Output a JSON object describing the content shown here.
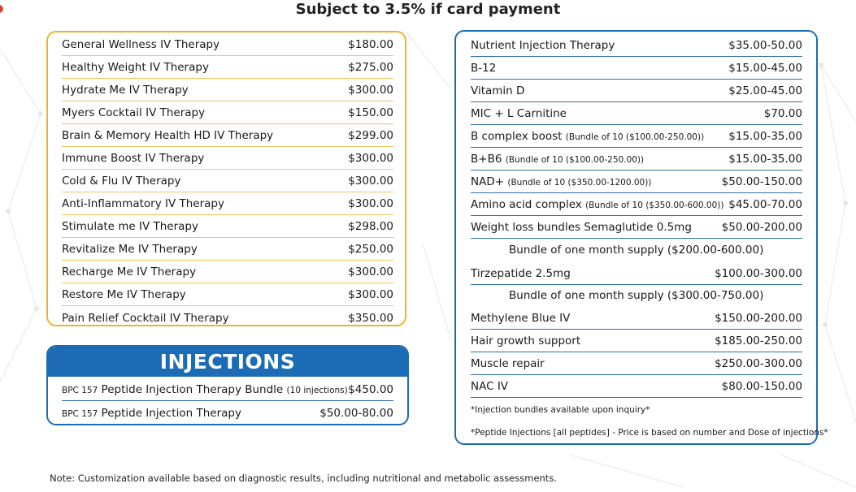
{
  "header": {
    "subject_line": "Subject to 3.5% if card payment"
  },
  "iv_therapies": [
    {
      "name": "General Wellness IV Therapy",
      "price": "$180.00"
    },
    {
      "name": "Healthy Weight IV Therapy",
      "price": "$275.00"
    },
    {
      "name": "Hydrate Me IV Therapy",
      "price": "$300.00"
    },
    {
      "name": "Myers Cocktail IV Therapy",
      "price": "$150.00"
    },
    {
      "name": "Brain & Memory Health HD IV Therapy",
      "price": "$299.00"
    },
    {
      "name": "Immune Boost IV Therapy",
      "price": "$300.00"
    },
    {
      "name": "Cold & Flu IV Therapy",
      "price": "$300.00"
    },
    {
      "name": "Anti-Inflammatory IV Therapy",
      "price": "$300.00"
    },
    {
      "name": "Stimulate me IV Therapy",
      "price": "$298.00"
    },
    {
      "name": "Revitalize Me IV Therapy",
      "price": "$250.00"
    },
    {
      "name": "Recharge Me IV Therapy",
      "price": "$300.00"
    },
    {
      "name": "Restore Me IV Therapy",
      "price": "$300.00"
    },
    {
      "name": "Pain Relief Cocktail IV Therapy",
      "price": "$350.00"
    }
  ],
  "injections": {
    "title": "INJECTIONS",
    "items": [
      {
        "prefix": "BPC 157",
        "name": "Peptide Injection Therapy Bundle",
        "note": "(10 injections)",
        "price": "$450.00"
      },
      {
        "prefix": "BPC 157",
        "name": "Peptide Injection Therapy",
        "note": "",
        "price": "$50.00-80.00"
      }
    ]
  },
  "nutrients": [
    {
      "name": "Nutrient Injection Therapy",
      "note": "",
      "price": "$35.00-50.00"
    },
    {
      "name": "B-12",
      "note": "",
      "price": "$15.00-45.00"
    },
    {
      "name": "Vitamin D",
      "note": "",
      "price": "$25.00-45.00"
    },
    {
      "name": "MIC + L Carnitine",
      "note": "",
      "price": "$70.00"
    },
    {
      "name": "B complex boost",
      "note": "(Bundle of 10 ($100.00-250.00))",
      "price": "$15.00-35.00"
    },
    {
      "name": "B+B6",
      "note": "(Bundle of 10 ($100.00-250.00))",
      "price": "$15.00-35.00"
    },
    {
      "name": "NAD+",
      "note": "(Bundle of 10 ($350.00-1200.00))",
      "price": "$50.00-150.00"
    },
    {
      "name": "Amino acid complex",
      "note": "(Bundle of 10 ($350.00-600.00))",
      "price": "$45.00-70.00"
    },
    {
      "name": "Weight loss bundles Semaglutide 0.5mg",
      "note": "",
      "price": "$50.00-200.00"
    }
  ],
  "semaglutide_bundle": "Bundle of one month supply ($200.00-600.00)",
  "tirzepatide": {
    "name": "Tirzepatide 2.5mg",
    "price": "$100.00-300.00"
  },
  "tirzepatide_bundle": "Bundle of one month supply ($300.00-750.00)",
  "nutrients_more": [
    {
      "name": "Methylene Blue IV",
      "price": "$150.00-200.00"
    },
    {
      "name": "Hair growth support",
      "price": "$185.00-250.00"
    },
    {
      "name": "Muscle repair",
      "price": "$250.00-300.00"
    },
    {
      "name": "NAC IV",
      "price": "$80.00-150.00"
    }
  ],
  "right_notes": {
    "bundles": "*Injection bundles available upon inquiry*",
    "peptides": "*Peptide Injections [all peptides] - Price is based on number and Dose of injections*"
  },
  "footer": {
    "note": "Note: Customization available based on diagnostic results, including nutritional and metabolic assessments."
  },
  "colors": {
    "gold_border": "#f2b02e",
    "blue_border": "#1c6cb5",
    "header_fill": "#1c6cb5"
  }
}
